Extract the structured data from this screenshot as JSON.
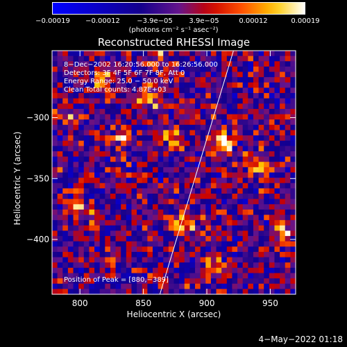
{
  "chart_data": {
    "type": "heatmap",
    "title": "Reconstructed RHESSI Image",
    "xlabel": "Heliocentric X (arcsec)",
    "ylabel": "Heliocentric Y (arcsec)",
    "xlim": [
      778,
      970
    ],
    "ylim": [
      -445,
      -245
    ],
    "x_ticks": [
      800,
      850,
      900,
      950
    ],
    "y_ticks": [
      -300,
      -350,
      -400
    ],
    "x_tick_labels": [
      "800",
      "850",
      "900",
      "950"
    ],
    "y_tick_labels": [
      "−300",
      "−350",
      "−400"
    ],
    "colorbar": {
      "range": [
        -0.00019,
        0.00019
      ],
      "tick_labels": [
        "−0.00019",
        "−0.00012",
        "−3.9e−05",
        "3.9e−05",
        "0.00012",
        "0.00019"
      ],
      "unit_label": "(photons cm⁻² s⁻¹ asec⁻²)"
    },
    "annotations": [
      "8−Dec−2002 16:20:56.000 to 16:26:56.000",
      "Detectors: 3F 4F 5F 6F 7F 8F, Att 0",
      "Energy Range: 25.0 − 50.0 keV",
      "Clean    Total counts: 4.87E+03",
      "Position of Peak = [880,−389]"
    ],
    "hot_spots": [
      {
        "x": 880,
        "y": -389,
        "value": 0.00019
      },
      {
        "x": 912,
        "y": -321,
        "value": 0.00017
      },
      {
        "x": 855,
        "y": -283,
        "value": 0.00016
      },
      {
        "x": 800,
        "y": -375,
        "value": 0.00015
      },
      {
        "x": 872,
        "y": -315,
        "value": 0.00013
      },
      {
        "x": 833,
        "y": -315,
        "value": 0.00012
      },
      {
        "x": 818,
        "y": -270,
        "value": 0.00013
      },
      {
        "x": 960,
        "y": -395,
        "value": 0.00012
      },
      {
        "x": 942,
        "y": -340,
        "value": 0.0001
      },
      {
        "x": 905,
        "y": -425,
        "value": 0.0001
      },
      {
        "x": 790,
        "y": -300,
        "value": 0.0001
      },
      {
        "x": 860,
        "y": -250,
        "value": 0.00011
      }
    ],
    "limb_line": {
      "x1": 863,
      "y1": -445,
      "x2": 921,
      "y2": -245
    }
  },
  "footer": {
    "timestamp": "4−May−2022 01:18"
  }
}
